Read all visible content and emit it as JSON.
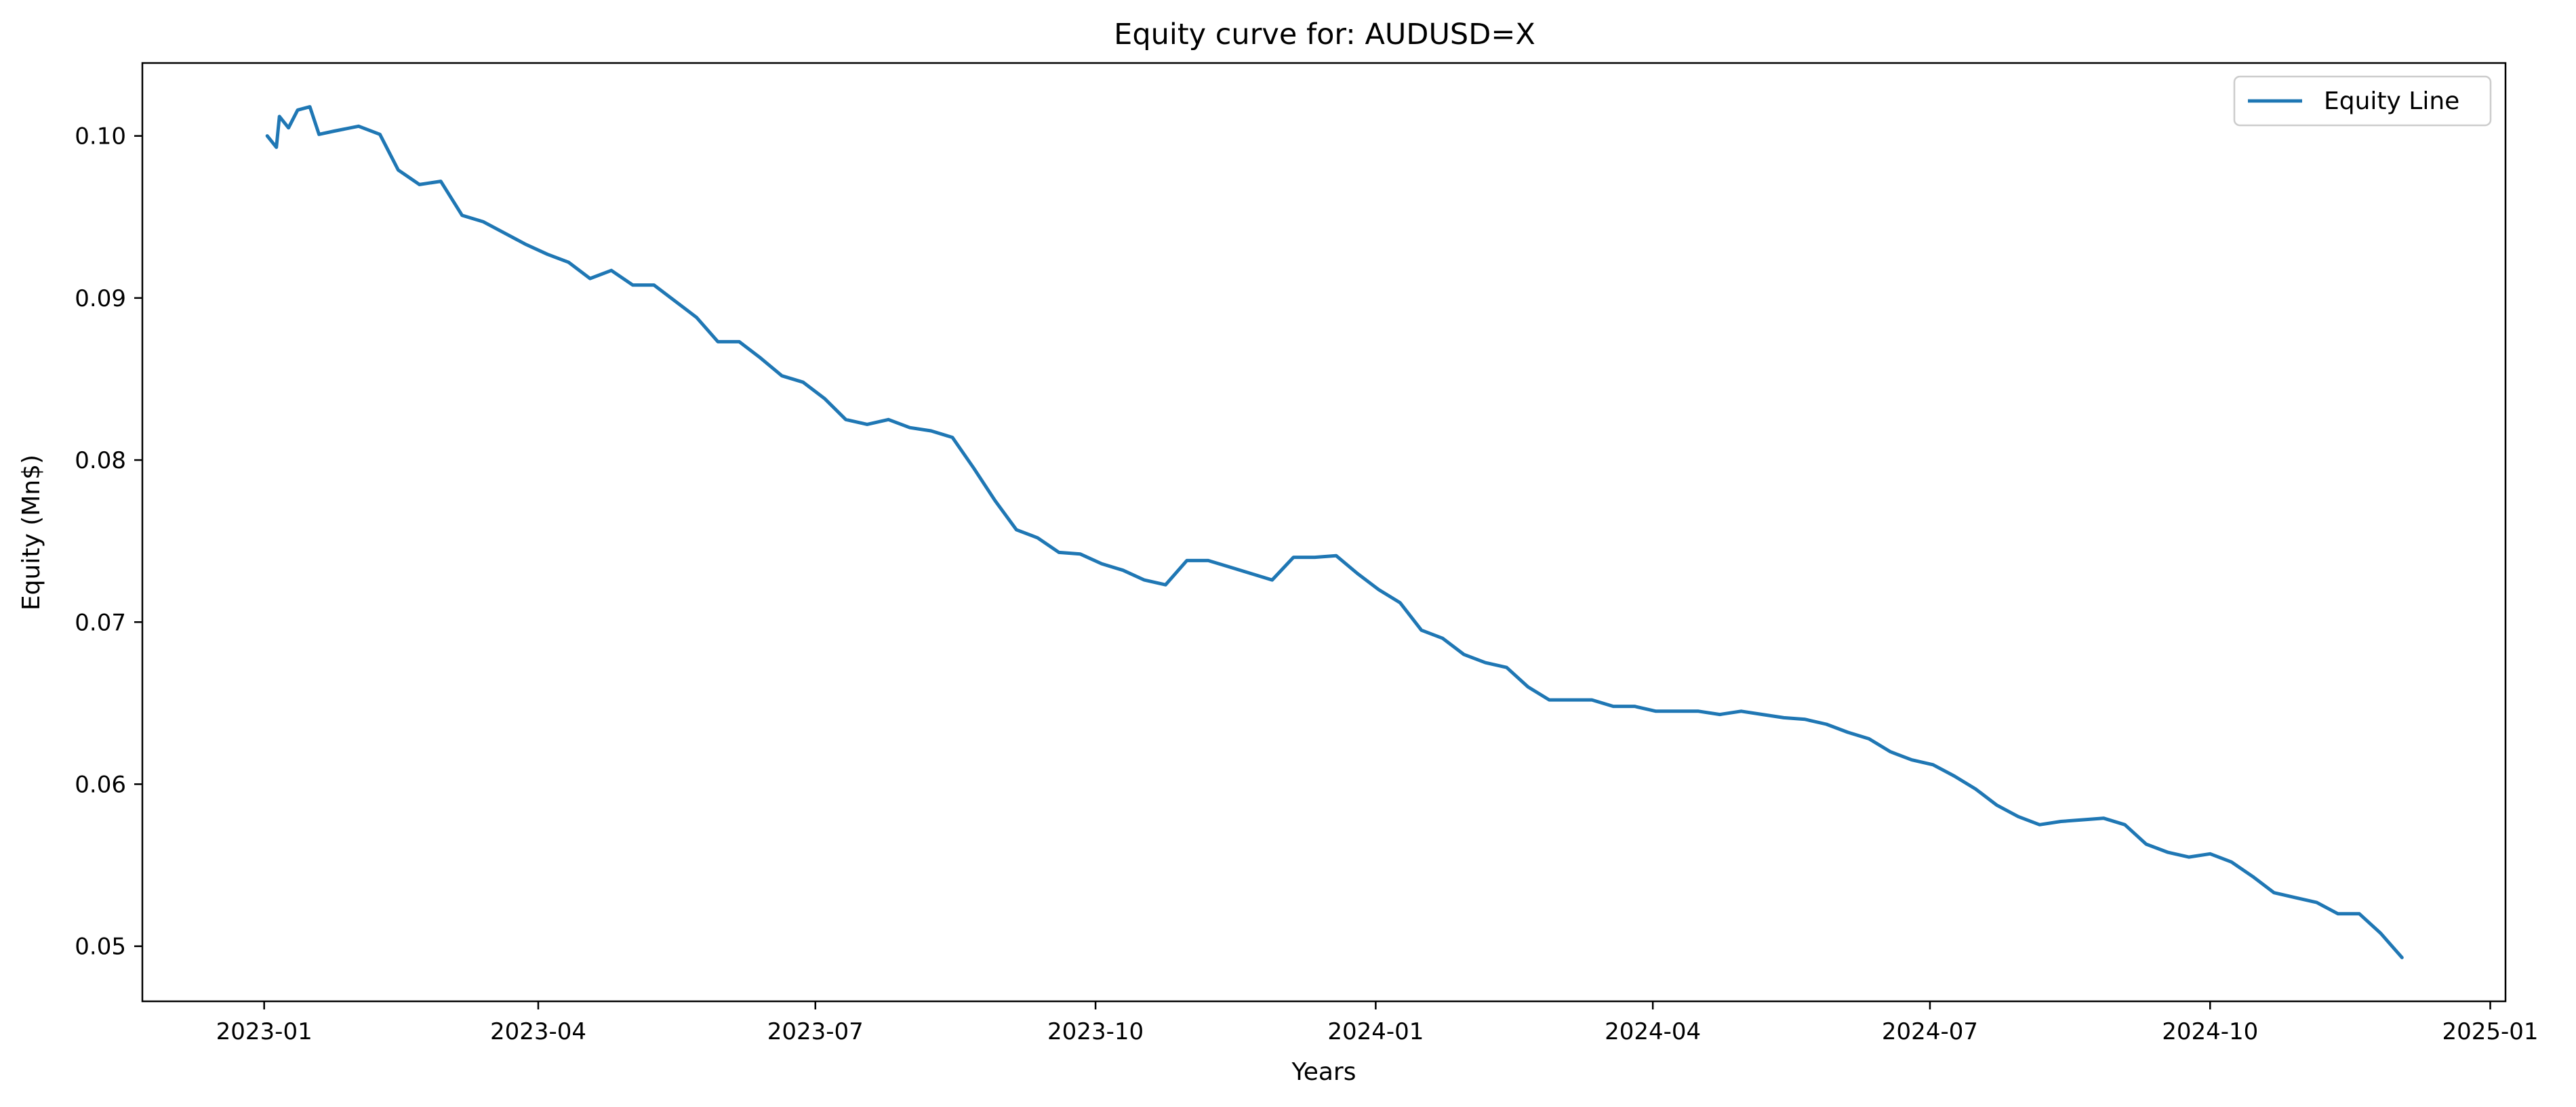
{
  "chart_data": {
    "type": "line",
    "title": "Equity curve for: AUDUSD=X",
    "xlabel": "Years",
    "ylabel": "Equity (Mn$)",
    "x_is_date": true,
    "xlim": [
      "2022-11-22",
      "2025-01-06"
    ],
    "ylim": [
      0.0466,
      0.1045
    ],
    "x_ticks": [
      "2023-01",
      "2023-04",
      "2023-07",
      "2023-10",
      "2024-01",
      "2024-04",
      "2024-07",
      "2024-10",
      "2025-01"
    ],
    "y_ticks": [
      "0.05",
      "0.06",
      "0.07",
      "0.08",
      "0.09",
      "0.10"
    ],
    "grid": false,
    "legend": {
      "position": "top-right",
      "entries": [
        "Equity Line"
      ]
    },
    "colors": {
      "line": "#1f77b4",
      "axes": "#000000"
    },
    "series": [
      {
        "name": "Equity Line",
        "x": [
          "2023-01-02",
          "2023-01-05",
          "2023-01-06",
          "2023-01-09",
          "2023-01-12",
          "2023-01-16",
          "2023-01-19",
          "2023-01-24",
          "2023-02-01",
          "2023-02-08",
          "2023-02-14",
          "2023-02-21",
          "2023-02-28",
          "2023-03-07",
          "2023-03-14",
          "2023-03-21",
          "2023-03-28",
          "2023-04-04",
          "2023-04-11",
          "2023-04-18",
          "2023-04-25",
          "2023-05-02",
          "2023-05-09",
          "2023-05-16",
          "2023-05-23",
          "2023-05-30",
          "2023-06-06",
          "2023-06-13",
          "2023-06-20",
          "2023-06-27",
          "2023-07-04",
          "2023-07-11",
          "2023-07-18",
          "2023-07-25",
          "2023-08-01",
          "2023-08-08",
          "2023-08-15",
          "2023-08-22",
          "2023-08-29",
          "2023-09-05",
          "2023-09-12",
          "2023-09-19",
          "2023-09-26",
          "2023-10-03",
          "2023-10-10",
          "2023-10-17",
          "2023-10-24",
          "2023-10-31",
          "2023-11-07",
          "2023-11-14",
          "2023-11-21",
          "2023-11-28",
          "2023-12-05",
          "2023-12-12",
          "2023-12-19",
          "2023-12-26",
          "2024-01-02",
          "2024-01-09",
          "2024-01-16",
          "2024-01-23",
          "2024-01-30",
          "2024-02-06",
          "2024-02-13",
          "2024-02-20",
          "2024-02-27",
          "2024-03-05",
          "2024-03-12",
          "2024-03-19",
          "2024-03-26",
          "2024-04-02",
          "2024-04-09",
          "2024-04-16",
          "2024-04-23",
          "2024-04-30",
          "2024-05-07",
          "2024-05-14",
          "2024-05-21",
          "2024-05-28",
          "2024-06-04",
          "2024-06-11",
          "2024-06-18",
          "2024-06-25",
          "2024-07-02",
          "2024-07-09",
          "2024-07-16",
          "2024-07-23",
          "2024-07-30",
          "2024-08-06",
          "2024-08-13",
          "2024-08-20",
          "2024-08-27",
          "2024-09-03",
          "2024-09-10",
          "2024-09-17",
          "2024-09-24",
          "2024-10-01",
          "2024-10-08",
          "2024-10-15",
          "2024-10-22",
          "2024-10-29",
          "2024-11-05",
          "2024-11-12",
          "2024-11-19",
          "2024-11-26",
          "2024-12-03"
        ],
        "y": [
          0.1,
          0.0993,
          0.1012,
          0.1005,
          0.1016,
          0.1018,
          0.1001,
          0.1003,
          0.1006,
          0.1001,
          0.0979,
          0.097,
          0.0972,
          0.0951,
          0.0947,
          0.094,
          0.0933,
          0.0927,
          0.0922,
          0.0912,
          0.0917,
          0.0908,
          0.0908,
          0.0898,
          0.0888,
          0.0873,
          0.0873,
          0.0863,
          0.0852,
          0.0848,
          0.0838,
          0.0825,
          0.0822,
          0.0825,
          0.082,
          0.0818,
          0.0814,
          0.0795,
          0.0775,
          0.0757,
          0.0752,
          0.0743,
          0.0742,
          0.0736,
          0.0732,
          0.0726,
          0.0723,
          0.0738,
          0.0738,
          0.0734,
          0.073,
          0.0726,
          0.074,
          0.074,
          0.0741,
          0.073,
          0.072,
          0.0712,
          0.0695,
          0.069,
          0.068,
          0.0675,
          0.0672,
          0.066,
          0.0652,
          0.0652,
          0.0652,
          0.0648,
          0.0648,
          0.0645,
          0.0645,
          0.0645,
          0.0643,
          0.0645,
          0.0643,
          0.0641,
          0.064,
          0.0637,
          0.0632,
          0.0628,
          0.062,
          0.0615,
          0.0612,
          0.0605,
          0.0597,
          0.0587,
          0.058,
          0.0575,
          0.0577,
          0.0578,
          0.0579,
          0.0575,
          0.0563,
          0.0558,
          0.0555,
          0.0557,
          0.0552,
          0.0543,
          0.0533,
          0.053,
          0.0527,
          0.052,
          0.052,
          0.0508,
          0.0493
        ]
      }
    ]
  }
}
